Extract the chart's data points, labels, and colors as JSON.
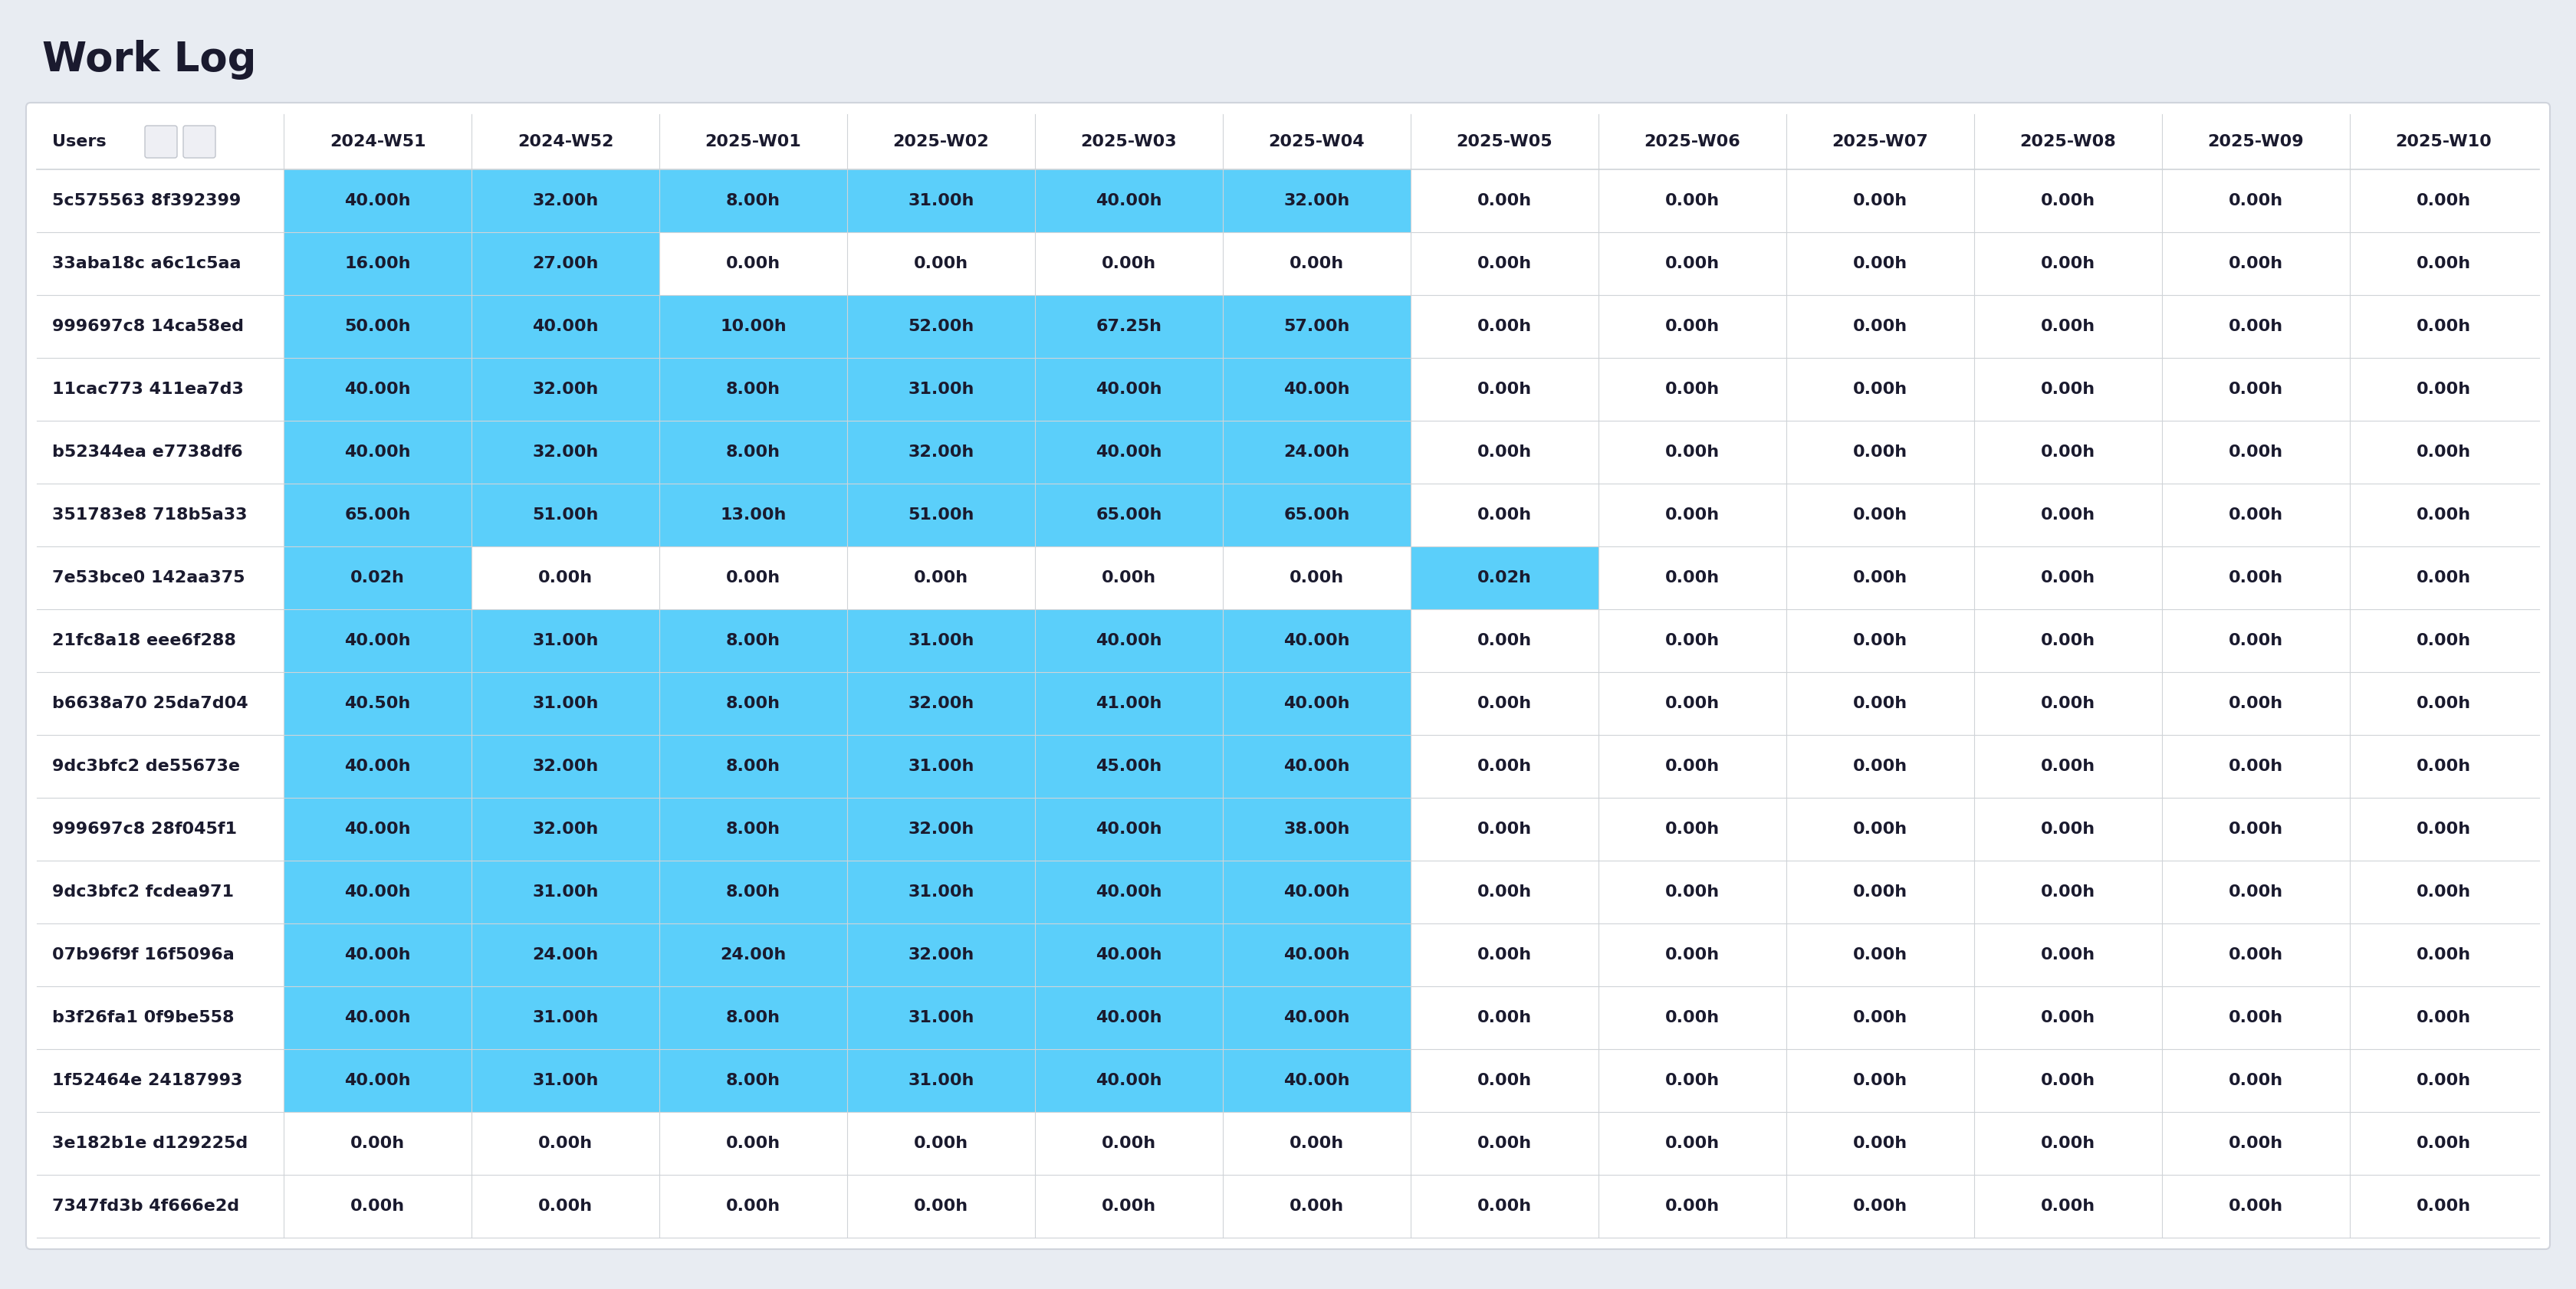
{
  "title": "Work Log",
  "background_color": "#e8ecf2",
  "table_bg": "#ffffff",
  "cell_blue": "#5bcffa",
  "cell_white": "#ffffff",
  "border_color": "#d0d4d8",
  "text_color": "#1a1a2e",
  "columns": [
    "Users",
    "2024-W51",
    "2024-W52",
    "2025-W01",
    "2025-W02",
    "2025-W03",
    "2025-W04",
    "2025-W05",
    "2025-W06",
    "2025-W07",
    "2025-W08",
    "2025-W09",
    "2025-W10"
  ],
  "rows": [
    [
      "5c575563 8f392399",
      "40.00h",
      "32.00h",
      "8.00h",
      "31.00h",
      "40.00h",
      "32.00h",
      "0.00h",
      "0.00h",
      "0.00h",
      "0.00h",
      "0.00h",
      "0.00h"
    ],
    [
      "33aba18c a6c1c5aa",
      "16.00h",
      "27.00h",
      "0.00h",
      "0.00h",
      "0.00h",
      "0.00h",
      "0.00h",
      "0.00h",
      "0.00h",
      "0.00h",
      "0.00h",
      "0.00h"
    ],
    [
      "999697c8 14ca58ed",
      "50.00h",
      "40.00h",
      "10.00h",
      "52.00h",
      "67.25h",
      "57.00h",
      "0.00h",
      "0.00h",
      "0.00h",
      "0.00h",
      "0.00h",
      "0.00h"
    ],
    [
      "11cac773 411ea7d3",
      "40.00h",
      "32.00h",
      "8.00h",
      "31.00h",
      "40.00h",
      "40.00h",
      "0.00h",
      "0.00h",
      "0.00h",
      "0.00h",
      "0.00h",
      "0.00h"
    ],
    [
      "b52344ea e7738df6",
      "40.00h",
      "32.00h",
      "8.00h",
      "32.00h",
      "40.00h",
      "24.00h",
      "0.00h",
      "0.00h",
      "0.00h",
      "0.00h",
      "0.00h",
      "0.00h"
    ],
    [
      "351783e8 718b5a33",
      "65.00h",
      "51.00h",
      "13.00h",
      "51.00h",
      "65.00h",
      "65.00h",
      "0.00h",
      "0.00h",
      "0.00h",
      "0.00h",
      "0.00h",
      "0.00h"
    ],
    [
      "7e53bce0 142aa375",
      "0.02h",
      "0.00h",
      "0.00h",
      "0.00h",
      "0.00h",
      "0.00h",
      "0.02h",
      "0.00h",
      "0.00h",
      "0.00h",
      "0.00h",
      "0.00h"
    ],
    [
      "21fc8a18 eee6f288",
      "40.00h",
      "31.00h",
      "8.00h",
      "31.00h",
      "40.00h",
      "40.00h",
      "0.00h",
      "0.00h",
      "0.00h",
      "0.00h",
      "0.00h",
      "0.00h"
    ],
    [
      "b6638a70 25da7d04",
      "40.50h",
      "31.00h",
      "8.00h",
      "32.00h",
      "41.00h",
      "40.00h",
      "0.00h",
      "0.00h",
      "0.00h",
      "0.00h",
      "0.00h",
      "0.00h"
    ],
    [
      "9dc3bfc2 de55673e",
      "40.00h",
      "32.00h",
      "8.00h",
      "31.00h",
      "45.00h",
      "40.00h",
      "0.00h",
      "0.00h",
      "0.00h",
      "0.00h",
      "0.00h",
      "0.00h"
    ],
    [
      "999697c8 28f045f1",
      "40.00h",
      "32.00h",
      "8.00h",
      "32.00h",
      "40.00h",
      "38.00h",
      "0.00h",
      "0.00h",
      "0.00h",
      "0.00h",
      "0.00h",
      "0.00h"
    ],
    [
      "9dc3bfc2 fcdea971",
      "40.00h",
      "31.00h",
      "8.00h",
      "31.00h",
      "40.00h",
      "40.00h",
      "0.00h",
      "0.00h",
      "0.00h",
      "0.00h",
      "0.00h",
      "0.00h"
    ],
    [
      "07b96f9f 16f5096a",
      "40.00h",
      "24.00h",
      "24.00h",
      "32.00h",
      "40.00h",
      "40.00h",
      "0.00h",
      "0.00h",
      "0.00h",
      "0.00h",
      "0.00h",
      "0.00h"
    ],
    [
      "b3f26fa1 0f9be558",
      "40.00h",
      "31.00h",
      "8.00h",
      "31.00h",
      "40.00h",
      "40.00h",
      "0.00h",
      "0.00h",
      "0.00h",
      "0.00h",
      "0.00h",
      "0.00h"
    ],
    [
      "1f52464e 24187993",
      "40.00h",
      "31.00h",
      "8.00h",
      "31.00h",
      "40.00h",
      "40.00h",
      "0.00h",
      "0.00h",
      "0.00h",
      "0.00h",
      "0.00h",
      "0.00h"
    ],
    [
      "3e182b1e d129225d",
      "0.00h",
      "0.00h",
      "0.00h",
      "0.00h",
      "0.00h",
      "0.00h",
      "0.00h",
      "0.00h",
      "0.00h",
      "0.00h",
      "0.00h",
      "0.00h"
    ],
    [
      "7347fd3b 4f666e2d",
      "0.00h",
      "0.00h",
      "0.00h",
      "0.00h",
      "0.00h",
      "0.00h",
      "0.00h",
      "0.00h",
      "0.00h",
      "0.00h",
      "0.00h",
      "0.00h"
    ]
  ],
  "font_size_title": 38,
  "font_size_header": 16,
  "font_size_data": 16
}
